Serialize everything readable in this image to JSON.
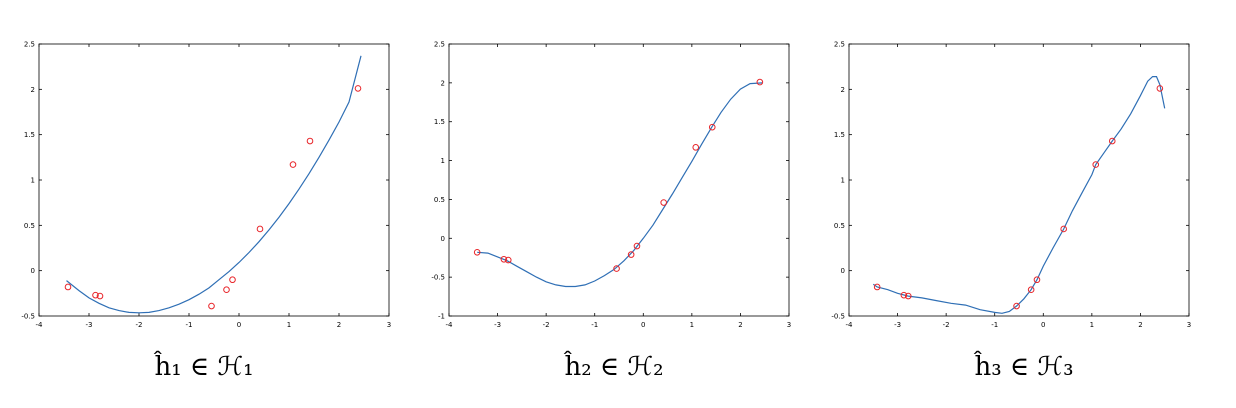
{
  "chart_data": [
    {
      "type": "scatter",
      "caption": "ĥ₁ ∈ ℋ₁",
      "xlim": [
        -4,
        3
      ],
      "ylim": [
        -0.5,
        2.5
      ],
      "xticks": [
        "-4",
        "-3",
        "-2",
        "-1",
        "0",
        "1",
        "2",
        "3"
      ],
      "yticks": [
        "-0.5",
        "0",
        "0.5",
        "1",
        "1.5",
        "2",
        "2.5"
      ],
      "series": [
        {
          "kind": "line",
          "color": "#2f6fb5",
          "points": [
            [
              -3.45,
              -0.11
            ],
            [
              -3.2,
              -0.22
            ],
            [
              -3.0,
              -0.3
            ],
            [
              -2.8,
              -0.36
            ],
            [
              -2.6,
              -0.41
            ],
            [
              -2.4,
              -0.44
            ],
            [
              -2.2,
              -0.46
            ],
            [
              -2.0,
              -0.465
            ],
            [
              -1.8,
              -0.46
            ],
            [
              -1.6,
              -0.44
            ],
            [
              -1.4,
              -0.41
            ],
            [
              -1.2,
              -0.37
            ],
            [
              -1.0,
              -0.32
            ],
            [
              -0.8,
              -0.26
            ],
            [
              -0.6,
              -0.19
            ],
            [
              -0.4,
              -0.1
            ],
            [
              -0.2,
              -0.01
            ],
            [
              0.0,
              0.09
            ],
            [
              0.2,
              0.2
            ],
            [
              0.4,
              0.32
            ],
            [
              0.6,
              0.45
            ],
            [
              0.8,
              0.59
            ],
            [
              1.0,
              0.74
            ],
            [
              1.2,
              0.9
            ],
            [
              1.4,
              1.07
            ],
            [
              1.6,
              1.25
            ],
            [
              1.8,
              1.44
            ],
            [
              2.0,
              1.64
            ],
            [
              2.2,
              1.86
            ],
            [
              2.44,
              2.37
            ]
          ]
        },
        {
          "kind": "markers",
          "color": "#e8252a",
          "x": [
            -3.42,
            -2.87,
            -2.78,
            -0.55,
            -0.25,
            -0.13,
            0.42,
            1.08,
            1.42,
            2.38
          ],
          "y": [
            -0.18,
            -0.27,
            -0.28,
            -0.39,
            -0.21,
            -0.1,
            0.46,
            1.17,
            1.43,
            2.01
          ]
        }
      ]
    },
    {
      "type": "scatter",
      "caption": "ĥ₂ ∈ ℋ₂",
      "xlim": [
        -4,
        3
      ],
      "ylim": [
        -1,
        2.5
      ],
      "xticks": [
        "-4",
        "-3",
        "-2",
        "-1",
        "0",
        "1",
        "2",
        "3"
      ],
      "yticks": [
        "-1",
        "-0.5",
        "0",
        "0.5",
        "1",
        "1.5",
        "2",
        "2.5"
      ],
      "series": [
        {
          "kind": "line",
          "color": "#2f6fb5",
          "points": [
            [
              -3.42,
              -0.18
            ],
            [
              -3.2,
              -0.19
            ],
            [
              -3.0,
              -0.24
            ],
            [
              -2.8,
              -0.29
            ],
            [
              -2.6,
              -0.36
            ],
            [
              -2.4,
              -0.43
            ],
            [
              -2.2,
              -0.5
            ],
            [
              -2.0,
              -0.56
            ],
            [
              -1.8,
              -0.6
            ],
            [
              -1.6,
              -0.62
            ],
            [
              -1.4,
              -0.62
            ],
            [
              -1.2,
              -0.6
            ],
            [
              -1.0,
              -0.55
            ],
            [
              -0.8,
              -0.48
            ],
            [
              -0.6,
              -0.4
            ],
            [
              -0.4,
              -0.29
            ],
            [
              -0.2,
              -0.16
            ],
            [
              0.0,
              -0.0
            ],
            [
              0.2,
              0.17
            ],
            [
              0.4,
              0.37
            ],
            [
              0.6,
              0.57
            ],
            [
              0.8,
              0.78
            ],
            [
              1.0,
              0.99
            ],
            [
              1.2,
              1.21
            ],
            [
              1.4,
              1.42
            ],
            [
              1.6,
              1.62
            ],
            [
              1.8,
              1.79
            ],
            [
              2.0,
              1.92
            ],
            [
              2.2,
              1.99
            ],
            [
              2.45,
              2.0
            ]
          ]
        },
        {
          "kind": "markers",
          "color": "#e8252a",
          "x": [
            -3.42,
            -2.87,
            -2.78,
            -0.55,
            -0.25,
            -0.13,
            0.42,
            1.08,
            1.42,
            2.4
          ],
          "y": [
            -0.18,
            -0.27,
            -0.28,
            -0.39,
            -0.21,
            -0.1,
            0.46,
            1.17,
            1.43,
            2.01
          ]
        }
      ]
    },
    {
      "type": "scatter",
      "caption": "ĥ₃ ∈ ℋ₃",
      "xlim": [
        -4,
        3
      ],
      "ylim": [
        -0.5,
        2.5
      ],
      "xticks": [
        "-4",
        "-3",
        "-2",
        "-1",
        "0",
        "1",
        "2",
        "3"
      ],
      "yticks": [
        "-0.5",
        "0",
        "0.5",
        "1",
        "1.5",
        "2",
        "2.5"
      ],
      "series": [
        {
          "kind": "line",
          "color": "#2f6fb5",
          "points": [
            [
              -3.5,
              -0.15
            ],
            [
              -3.42,
              -0.18
            ],
            [
              -3.2,
              -0.21
            ],
            [
              -3.0,
              -0.25
            ],
            [
              -2.78,
              -0.28
            ],
            [
              -2.5,
              -0.3
            ],
            [
              -2.2,
              -0.33
            ],
            [
              -1.9,
              -0.36
            ],
            [
              -1.6,
              -0.38
            ],
            [
              -1.3,
              -0.43
            ],
            [
              -1.0,
              -0.46
            ],
            [
              -0.85,
              -0.47
            ],
            [
              -0.7,
              -0.45
            ],
            [
              -0.55,
              -0.39
            ],
            [
              -0.4,
              -0.31
            ],
            [
              -0.25,
              -0.21
            ],
            [
              -0.13,
              -0.1
            ],
            [
              0.0,
              0.05
            ],
            [
              0.2,
              0.25
            ],
            [
              0.42,
              0.46
            ],
            [
              0.6,
              0.66
            ],
            [
              0.8,
              0.86
            ],
            [
              1.0,
              1.06
            ],
            [
              1.08,
              1.17
            ],
            [
              1.25,
              1.3
            ],
            [
              1.42,
              1.43
            ],
            [
              1.6,
              1.56
            ],
            [
              1.8,
              1.73
            ],
            [
              2.0,
              1.93
            ],
            [
              2.15,
              2.09
            ],
            [
              2.25,
              2.14
            ],
            [
              2.33,
              2.14
            ],
            [
              2.4,
              2.05
            ],
            [
              2.45,
              1.92
            ],
            [
              2.5,
              1.79
            ]
          ]
        },
        {
          "kind": "markers",
          "color": "#e8252a",
          "x": [
            -3.42,
            -2.87,
            -2.78,
            -0.55,
            -0.25,
            -0.13,
            0.42,
            1.08,
            1.42,
            2.4
          ],
          "y": [
            -0.18,
            -0.27,
            -0.28,
            -0.39,
            -0.21,
            -0.1,
            0.46,
            1.17,
            1.43,
            2.01
          ]
        }
      ]
    }
  ]
}
